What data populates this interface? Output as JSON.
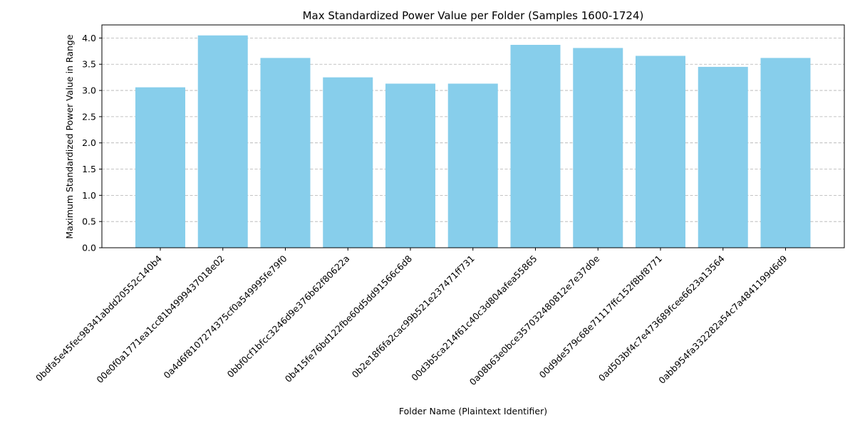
{
  "chart_data": {
    "type": "bar",
    "title": "Max Standardized Power Value per Folder (Samples 1600-1724)",
    "xlabel": "Folder Name (Plaintext Identifier)",
    "ylabel": "Maximum Standardized Power Value in Range",
    "categories": [
      "0bdfa5e45fec98341abdd20552c140b4",
      "00e0f0a1771ea1cc81b499943701 8e02",
      "0a4d6f8107274375cf0a549995fe79f0",
      "0bbf0cf1bfcc3246d9e376b62f80622a",
      "0b415fe76bd122fbe60d5dd91566c6d8",
      "0b2e18f6fa2cac99b521e237471ff731",
      "00d3b5ca214f61c40c3d804afea55865",
      "0a08b63e0bce35703248081 2e7e37d0e",
      "00d9de579c68e71117ffc152f8bf8771",
      "0ad503bf4c7e473689fcee6623a13564",
      "0abb954fa332282a54c7a4841199d6d9"
    ],
    "values": [
      3.06,
      4.05,
      3.62,
      3.25,
      3.13,
      3.13,
      3.87,
      3.81,
      3.66,
      3.45,
      3.62
    ],
    "ylim": [
      0,
      4.25
    ],
    "yticks": [
      "0.0",
      "0.5",
      "1.0",
      "1.5",
      "2.0",
      "2.5",
      "3.0",
      "3.5",
      "4.0"
    ],
    "grid": "y-dashed",
    "bar_color": "#87CEEB",
    "grid_color": "#b0b0b0"
  }
}
